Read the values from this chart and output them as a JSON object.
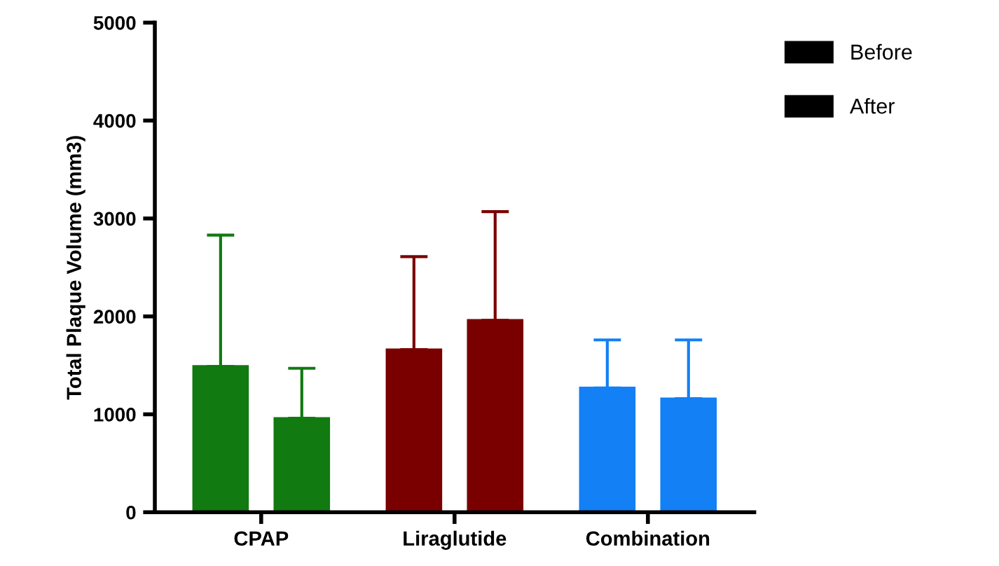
{
  "chart_data": {
    "type": "bar",
    "ylabel": "Total Plaque Volume (mm3)",
    "categories": [
      "CPAP",
      "Liraglutide",
      "Combination"
    ],
    "series": [
      {
        "name": "Before",
        "color": "#000000",
        "colors": [
          "#117a11",
          "#7a0000",
          "#1380f5"
        ],
        "values": [
          1490,
          1660,
          1270
        ],
        "errors": [
          [
            1490,
            2830
          ],
          [
            1660,
            2610
          ],
          [
            1270,
            1760
          ]
        ]
      },
      {
        "name": "After",
        "color": "#000000",
        "colors": [
          "#117a11",
          "#7a0000",
          "#1380f5"
        ],
        "values": [
          960,
          1960,
          1160
        ],
        "errors": [
          [
            960,
            1470
          ],
          [
            1960,
            3070
          ],
          [
            1160,
            1760
          ]
        ]
      }
    ],
    "ylim": [
      0,
      5000
    ],
    "yticks": [
      0,
      1000,
      2000,
      3000,
      4000,
      5000
    ],
    "grid": false,
    "legend": "top right"
  }
}
